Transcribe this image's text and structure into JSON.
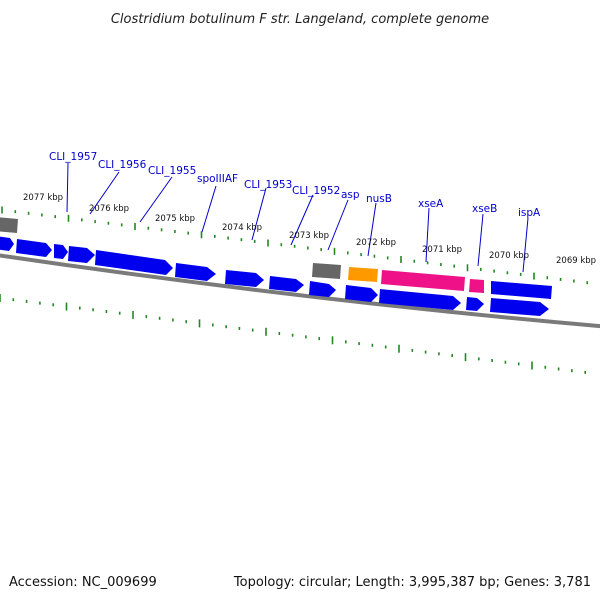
{
  "title": "Clostridium botulinum F str. Langeland, complete genome",
  "footer": {
    "accession": "Accession: NC_009699",
    "summary": "Topology: circular; Length: 3,995,387 bp; Genes: 3,781"
  },
  "kbp_labels": [
    "2077 kbp",
    "2076 kbp",
    "2075 kbp",
    "2074 kbp",
    "2073 kbp",
    "2072 kbp",
    "2071 kbp",
    "2070 kbp",
    "2069 kbp"
  ],
  "gene_labels": [
    "CLI_1957",
    "CLI_1956",
    "CLI_1955",
    "spoIIIAF",
    "CLI_1953",
    "CLI_1952",
    "asp",
    "nusB",
    "xseA",
    "xseB",
    "ispA"
  ],
  "colors": {
    "cds": "#0000ee",
    "rna_gray": "#666666",
    "orange": "#ff9900",
    "pink": "#ee1188",
    "backbone": "#7a7a7a",
    "ticks": "#228822"
  }
}
